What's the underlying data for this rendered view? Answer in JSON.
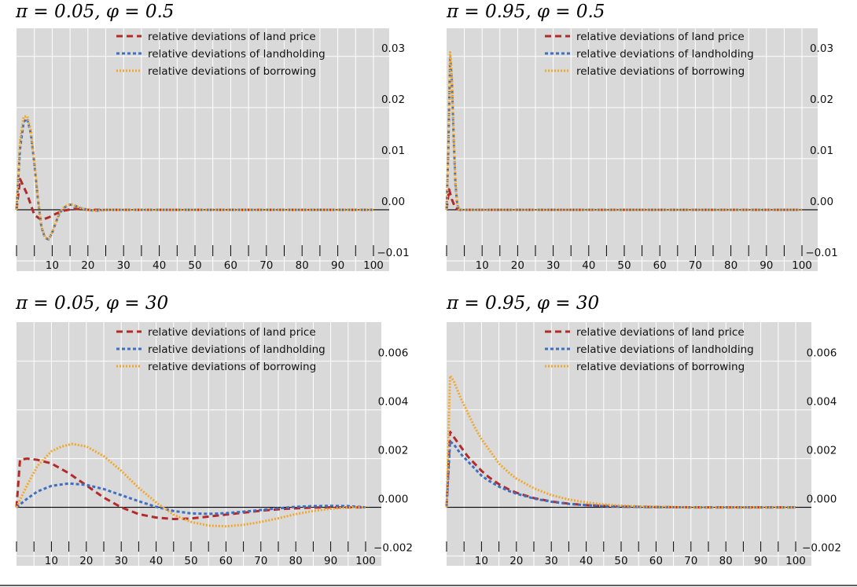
{
  "legend_labels": {
    "price": "relative deviations of land price",
    "landholding": "relative deviations of landholding",
    "borrowing": "relative deviations of borrowing"
  },
  "series_styles": {
    "price": {
      "color": "#b22a2a",
      "dash": "8,5"
    },
    "landholding": {
      "color": "#3f6fbf",
      "dash": "4,3"
    },
    "borrowing": {
      "color": "#f2a72c",
      "dash": "2,2"
    }
  },
  "chart_data": [
    {
      "type": "line",
      "title": "π = 0.05, φ = 0.5",
      "xlim": [
        0,
        100
      ],
      "ylim": [
        -0.012,
        0.0355
      ],
      "xticks": [
        "10",
        "20",
        "30",
        "40",
        "50",
        "60",
        "70",
        "80",
        "90",
        "100"
      ],
      "yticks": [
        "−0.01",
        "0.00",
        "0.01",
        "0.02",
        "0.03"
      ],
      "ytick_values": [
        -0.01,
        0.0,
        0.01,
        0.02,
        0.03
      ],
      "series": [
        {
          "key": "price",
          "x": [
            0,
            1,
            3,
            5,
            7,
            9,
            11,
            13,
            16,
            20,
            25,
            100
          ],
          "y": [
            0,
            0.006,
            0.003,
            -0.001,
            -0.002,
            -0.0015,
            -0.0008,
            -0.0002,
            0.0002,
            0.0,
            0.0,
            0.0
          ]
        },
        {
          "key": "landholding",
          "x": [
            0,
            1,
            2,
            3,
            4,
            5,
            6,
            7,
            8,
            9,
            10,
            11,
            12,
            13,
            14,
            15,
            16,
            17,
            18,
            20,
            22,
            25,
            100
          ],
          "y": [
            0,
            0.012,
            0.0172,
            0.0178,
            0.015,
            0.009,
            0.002,
            -0.0035,
            -0.0055,
            -0.0058,
            -0.0045,
            -0.0025,
            -0.0008,
            0.0002,
            0.0007,
            0.001,
            0.0009,
            0.0006,
            0.0003,
            0.0,
            -0.0002,
            0.0,
            0.0
          ]
        },
        {
          "key": "borrowing",
          "x": [
            0,
            1,
            2,
            3,
            4,
            5,
            6,
            7,
            8,
            9,
            10,
            11,
            12,
            13,
            14,
            15,
            16,
            17,
            18,
            20,
            22,
            25,
            100
          ],
          "y": [
            0,
            0.0135,
            0.0182,
            0.0183,
            0.0155,
            0.0093,
            0.0022,
            -0.0033,
            -0.0054,
            -0.0057,
            -0.0044,
            -0.0024,
            -0.0007,
            0.0003,
            0.0008,
            0.0011,
            0.001,
            0.0006,
            0.0003,
            0.0,
            -0.0002,
            0.0,
            0.0
          ]
        }
      ]
    },
    {
      "type": "line",
      "title": "π = 0.95, φ = 0.5",
      "xlim": [
        0,
        100
      ],
      "ylim": [
        -0.012,
        0.0355
      ],
      "xticks": [
        "10",
        "20",
        "30",
        "40",
        "50",
        "60",
        "70",
        "80",
        "90",
        "100"
      ],
      "yticks": [
        "−0.01",
        "0.00",
        "0.01",
        "0.02",
        "0.03"
      ],
      "ytick_values": [
        -0.01,
        0.0,
        0.01,
        0.02,
        0.03
      ],
      "series": [
        {
          "key": "price",
          "x": [
            0,
            0.7,
            1.5,
            2.5,
            3.5,
            100
          ],
          "y": [
            0,
            0.004,
            0.002,
            0.0003,
            0.0,
            0.0
          ]
        },
        {
          "key": "landholding",
          "x": [
            0,
            0.5,
            1,
            1.5,
            2,
            2.5,
            3,
            3.5,
            4,
            100
          ],
          "y": [
            0,
            0.012,
            0.03,
            0.025,
            0.014,
            0.005,
            0.001,
            0.0,
            0.0,
            0.0
          ]
        },
        {
          "key": "borrowing",
          "x": [
            0,
            0.5,
            1,
            1.5,
            2,
            2.5,
            3,
            3.5,
            4,
            100
          ],
          "y": [
            0,
            0.013,
            0.0308,
            0.026,
            0.0145,
            0.0055,
            0.0012,
            0.0,
            0.0,
            0.0
          ]
        }
      ]
    },
    {
      "type": "line",
      "title": "π = 0.05, φ = 30",
      "xlim": [
        0,
        100
      ],
      "ylim": [
        -0.0024,
        0.0076
      ],
      "xticks": [
        "10",
        "20",
        "30",
        "40",
        "50",
        "60",
        "70",
        "80",
        "90",
        "100"
      ],
      "yticks": [
        "−0.002",
        "0.000",
        "0.002",
        "0.004",
        "0.006"
      ],
      "ytick_values": [
        -0.002,
        0.0,
        0.002,
        0.004,
        0.006
      ],
      "series": [
        {
          "key": "price",
          "x": [
            0,
            1,
            3,
            6,
            10,
            15,
            20,
            25,
            30,
            35,
            40,
            45,
            50,
            55,
            60,
            65,
            70,
            75,
            80,
            85,
            90,
            95,
            100
          ],
          "y": [
            0,
            0.00195,
            0.002,
            0.00195,
            0.0018,
            0.0014,
            0.0009,
            0.0004,
            0.0,
            -0.00028,
            -0.00042,
            -0.00048,
            -0.00046,
            -0.00038,
            -0.0003,
            -0.00022,
            -0.00014,
            -8e-05,
            -4e-05,
            -1e-05,
            0.0,
            0.0,
            0.0
          ]
        },
        {
          "key": "landholding",
          "x": [
            0,
            3,
            6,
            10,
            15,
            20,
            25,
            30,
            35,
            40,
            45,
            50,
            55,
            60,
            65,
            70,
            75,
            80,
            85,
            90,
            95,
            100
          ],
          "y": [
            0,
            0.00035,
            0.00065,
            0.00088,
            0.00098,
            0.00092,
            0.00075,
            0.0005,
            0.00025,
            2e-05,
            -0.00015,
            -0.00025,
            -0.00027,
            -0.00024,
            -0.00018,
            -0.00011,
            -4e-05,
            2e-05,
            5e-05,
            6e-05,
            5e-05,
            0.0
          ]
        },
        {
          "key": "borrowing",
          "x": [
            0,
            3,
            6,
            10,
            13,
            16,
            20,
            25,
            30,
            35,
            40,
            45,
            50,
            55,
            60,
            65,
            70,
            75,
            80,
            85,
            90,
            95,
            100
          ],
          "y": [
            0,
            0.0009,
            0.0017,
            0.0023,
            0.0025,
            0.0026,
            0.0025,
            0.0021,
            0.0015,
            0.0008,
            0.0002,
            -0.0003,
            -0.0006,
            -0.00075,
            -0.00078,
            -0.00072,
            -0.0006,
            -0.00045,
            -0.00028,
            -0.00015,
            -6e-05,
            0.0,
            0.0
          ]
        }
      ]
    },
    {
      "type": "line",
      "title": "π = 0.95, φ = 30",
      "xlim": [
        0,
        100
      ],
      "ylim": [
        -0.0024,
        0.0076
      ],
      "xticks": [
        "10",
        "20",
        "30",
        "40",
        "50",
        "60",
        "70",
        "80",
        "90",
        "100"
      ],
      "yticks": [
        "−0.002",
        "0.000",
        "0.002",
        "0.004",
        "0.006"
      ],
      "ytick_values": [
        -0.002,
        0.0,
        0.002,
        0.004,
        0.006
      ],
      "series": [
        {
          "key": "price",
          "x": [
            0,
            1,
            2,
            4,
            6,
            8,
            10,
            12,
            15,
            18,
            20,
            25,
            30,
            35,
            40,
            45,
            50,
            55,
            60,
            70,
            80,
            90,
            100
          ],
          "y": [
            0,
            0.0031,
            0.0029,
            0.0025,
            0.0021,
            0.0018,
            0.0015,
            0.00125,
            0.00095,
            0.00072,
            0.0006,
            0.00038,
            0.00024,
            0.00015,
            9e-05,
            6e-05,
            3e-05,
            2e-05,
            1e-05,
            0.0,
            0.0,
            0.0,
            0.0
          ]
        },
        {
          "key": "landholding",
          "x": [
            0,
            1,
            2,
            4,
            6,
            8,
            10,
            12,
            15,
            18,
            20,
            25,
            30,
            35,
            40,
            45,
            50,
            55,
            60,
            70,
            80,
            90,
            100
          ],
          "y": [
            0,
            0.0027,
            0.0026,
            0.0022,
            0.0019,
            0.0016,
            0.0013,
            0.0011,
            0.00085,
            0.00066,
            0.00056,
            0.00036,
            0.00023,
            0.00014,
            9e-05,
            5e-05,
            3e-05,
            2e-05,
            1e-05,
            0.0,
            0.0,
            0.0,
            0.0
          ]
        },
        {
          "key": "borrowing",
          "x": [
            0,
            1,
            2,
            4,
            6,
            8,
            10,
            12,
            15,
            18,
            20,
            25,
            30,
            35,
            40,
            45,
            50,
            55,
            60,
            70,
            80,
            90,
            100
          ],
          "y": [
            0,
            0.0054,
            0.0052,
            0.0045,
            0.0039,
            0.0033,
            0.0028,
            0.0024,
            0.0018,
            0.0014,
            0.00118,
            0.00078,
            0.0005,
            0.00032,
            0.0002,
            0.00012,
            7e-05,
            4e-05,
            2e-05,
            0.0,
            0.0,
            0.0,
            0.0
          ]
        }
      ]
    }
  ]
}
